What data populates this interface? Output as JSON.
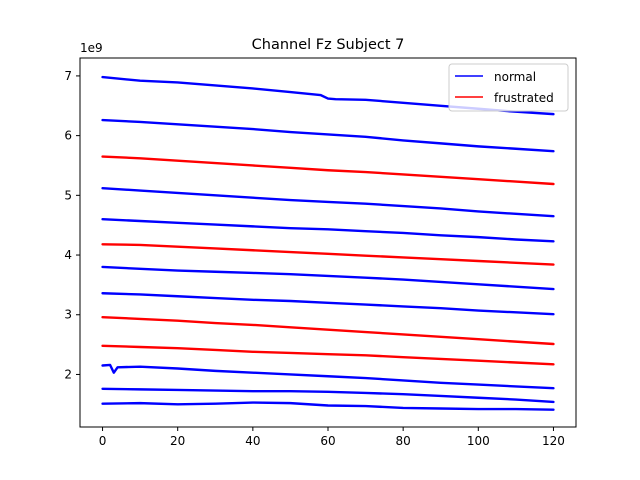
{
  "chart_data": {
    "type": "line",
    "title": "Channel Fz Subject 7",
    "xlabel": "",
    "ylabel": "",
    "y_offset_label": "1e9",
    "xlim": [
      -6,
      126
    ],
    "ylim": [
      1.12,
      7.3
    ],
    "xticks": [
      0,
      20,
      40,
      60,
      80,
      100,
      120
    ],
    "yticks": [
      2,
      3,
      4,
      5,
      6,
      7
    ],
    "grid": false,
    "legend": {
      "placement": "top-right",
      "entries": [
        {
          "label": "normal",
          "color": "#0000ff"
        },
        {
          "label": "frustrated",
          "color": "#ff0000"
        }
      ]
    },
    "series": [
      {
        "group": "normal",
        "color": "#0000ff",
        "x": [
          0,
          10,
          20,
          30,
          40,
          50,
          58,
          60,
          62,
          70,
          80,
          90,
          100,
          110,
          120
        ],
        "y": [
          6.98,
          6.92,
          6.89,
          6.84,
          6.79,
          6.73,
          6.68,
          6.62,
          6.61,
          6.6,
          6.55,
          6.5,
          6.45,
          6.4,
          6.36
        ]
      },
      {
        "group": "normal",
        "color": "#0000ff",
        "x": [
          0,
          10,
          20,
          30,
          40,
          50,
          60,
          70,
          80,
          90,
          100,
          110,
          120
        ],
        "y": [
          6.26,
          6.23,
          6.19,
          6.15,
          6.11,
          6.06,
          6.02,
          5.98,
          5.92,
          5.87,
          5.82,
          5.78,
          5.74
        ]
      },
      {
        "group": "frustrated",
        "color": "#ff0000",
        "x": [
          0,
          10,
          20,
          30,
          40,
          50,
          60,
          70,
          80,
          90,
          100,
          110,
          120
        ],
        "y": [
          5.65,
          5.62,
          5.58,
          5.54,
          5.5,
          5.46,
          5.42,
          5.39,
          5.35,
          5.31,
          5.27,
          5.23,
          5.19
        ]
      },
      {
        "group": "normal",
        "color": "#0000ff",
        "x": [
          0,
          10,
          20,
          30,
          40,
          50,
          60,
          70,
          80,
          90,
          100,
          110,
          120
        ],
        "y": [
          5.12,
          5.08,
          5.04,
          5.0,
          4.96,
          4.92,
          4.89,
          4.86,
          4.82,
          4.78,
          4.73,
          4.69,
          4.65
        ]
      },
      {
        "group": "normal",
        "color": "#0000ff",
        "x": [
          0,
          10,
          20,
          30,
          40,
          50,
          60,
          70,
          80,
          90,
          100,
          110,
          120
        ],
        "y": [
          4.6,
          4.57,
          4.54,
          4.51,
          4.48,
          4.45,
          4.43,
          4.4,
          4.37,
          4.33,
          4.3,
          4.26,
          4.23
        ]
      },
      {
        "group": "frustrated",
        "color": "#ff0000",
        "x": [
          0,
          10,
          20,
          30,
          40,
          50,
          60,
          70,
          80,
          90,
          100,
          110,
          120
        ],
        "y": [
          4.18,
          4.17,
          4.14,
          4.11,
          4.08,
          4.05,
          4.02,
          3.99,
          3.96,
          3.93,
          3.9,
          3.87,
          3.84
        ]
      },
      {
        "group": "normal",
        "color": "#0000ff",
        "x": [
          0,
          10,
          20,
          30,
          40,
          50,
          60,
          70,
          80,
          90,
          100,
          110,
          120
        ],
        "y": [
          3.8,
          3.77,
          3.74,
          3.72,
          3.7,
          3.68,
          3.65,
          3.62,
          3.59,
          3.55,
          3.51,
          3.47,
          3.43
        ]
      },
      {
        "group": "normal",
        "color": "#0000ff",
        "x": [
          0,
          10,
          20,
          30,
          40,
          50,
          60,
          70,
          80,
          90,
          100,
          110,
          120
        ],
        "y": [
          3.36,
          3.34,
          3.31,
          3.28,
          3.25,
          3.23,
          3.2,
          3.17,
          3.14,
          3.11,
          3.07,
          3.04,
          3.01
        ]
      },
      {
        "group": "frustrated",
        "color": "#ff0000",
        "x": [
          0,
          10,
          20,
          30,
          40,
          50,
          60,
          70,
          80,
          90,
          100,
          110,
          120
        ],
        "y": [
          2.96,
          2.93,
          2.9,
          2.86,
          2.83,
          2.79,
          2.75,
          2.71,
          2.67,
          2.63,
          2.59,
          2.55,
          2.51
        ]
      },
      {
        "group": "frustrated",
        "color": "#ff0000",
        "x": [
          0,
          10,
          20,
          30,
          40,
          50,
          60,
          70,
          80,
          90,
          100,
          110,
          120
        ],
        "y": [
          2.48,
          2.46,
          2.44,
          2.41,
          2.38,
          2.36,
          2.34,
          2.32,
          2.29,
          2.26,
          2.23,
          2.2,
          2.17
        ]
      },
      {
        "group": "normal",
        "color": "#0000ff",
        "x": [
          0,
          2,
          3,
          4,
          10,
          20,
          30,
          40,
          50,
          60,
          70,
          80,
          90,
          100,
          110,
          120
        ],
        "y": [
          2.15,
          2.16,
          2.03,
          2.12,
          2.13,
          2.1,
          2.06,
          2.03,
          2.0,
          1.97,
          1.94,
          1.9,
          1.86,
          1.83,
          1.8,
          1.77
        ]
      },
      {
        "group": "normal",
        "color": "#0000ff",
        "x": [
          0,
          10,
          20,
          30,
          40,
          50,
          60,
          70,
          80,
          90,
          100,
          110,
          120
        ],
        "y": [
          1.76,
          1.75,
          1.74,
          1.73,
          1.72,
          1.72,
          1.71,
          1.69,
          1.67,
          1.64,
          1.61,
          1.58,
          1.54
        ]
      },
      {
        "group": "normal",
        "color": "#0000ff",
        "x": [
          0,
          10,
          20,
          30,
          40,
          50,
          60,
          70,
          80,
          90,
          100,
          110,
          120
        ],
        "y": [
          1.51,
          1.52,
          1.5,
          1.51,
          1.53,
          1.52,
          1.48,
          1.47,
          1.44,
          1.43,
          1.42,
          1.42,
          1.41
        ]
      }
    ]
  }
}
